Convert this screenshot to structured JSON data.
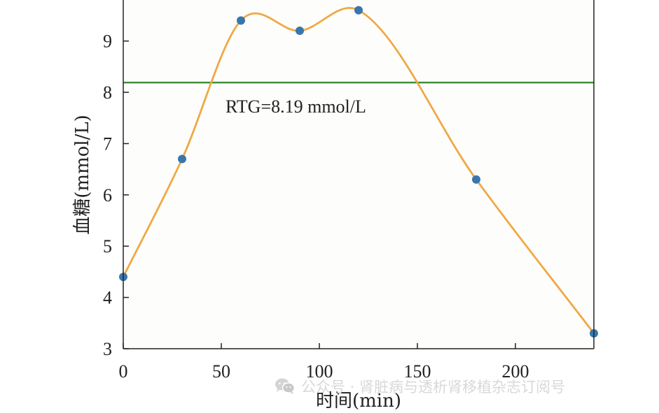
{
  "chart_data": {
    "type": "line",
    "title": "",
    "xlabel": "时间(min)",
    "ylabel": "血糖(mmol/L)",
    "xlim": [
      0,
      240
    ],
    "ylim": [
      3,
      9.8
    ],
    "xticks": [
      0,
      50,
      100,
      150,
      200
    ],
    "yticks": [
      3,
      4,
      5,
      6,
      7,
      8,
      9
    ],
    "grid": false,
    "series": [
      {
        "name": "血糖",
        "color": "#f0a845",
        "smooth": true,
        "x": [
          0,
          30,
          60,
          90,
          120,
          180,
          240
        ],
        "values": [
          4.4,
          6.7,
          9.4,
          9.2,
          9.6,
          6.3,
          3.3
        ]
      }
    ],
    "marker_color": "#3a76ad",
    "threshold": {
      "value": 8.19,
      "label": "RTG=8.19 mmol/L",
      "color": "#3f8f3a"
    }
  },
  "watermark": {
    "icon": "wechat-icon",
    "text": "公众号 · 肾脏病与透析肾移植杂志订阅号"
  }
}
